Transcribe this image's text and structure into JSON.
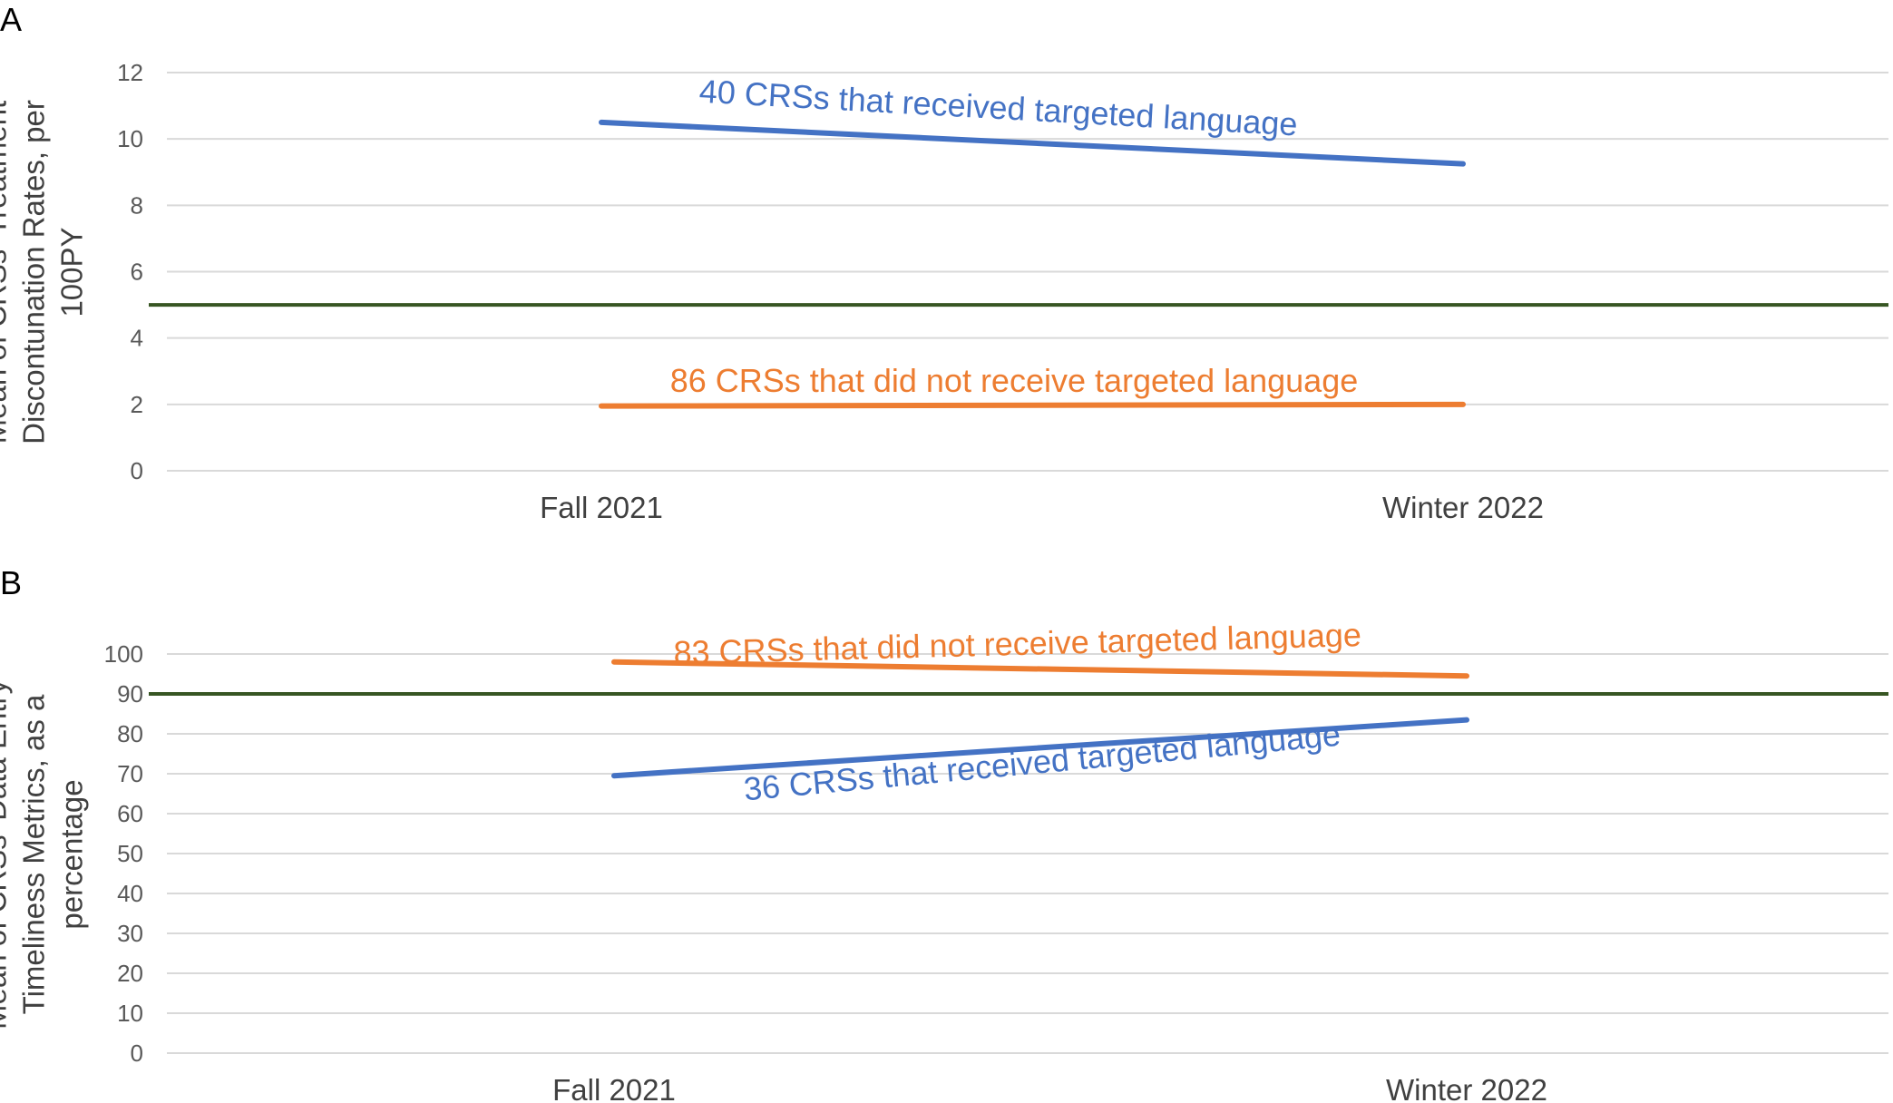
{
  "chart_data": [
    {
      "panel": "A",
      "type": "line",
      "ylabel": [
        "Mean of CRSs' Treatment",
        "Discontunation Rates, per",
        "100PY"
      ],
      "categories": [
        "Fall 2021",
        "Winter 2022"
      ],
      "ylim": [
        0,
        12
      ],
      "yticks": [
        0,
        2,
        4,
        6,
        8,
        10,
        12
      ],
      "grid": true,
      "reference_line": {
        "value": 5.0,
        "color": "#375623"
      },
      "series": [
        {
          "name": "40 CRSs that received targeted language",
          "values": [
            10.5,
            9.25
          ],
          "color": "#4472C4"
        },
        {
          "name": "86 CRSs that did not receive targeted language",
          "values": [
            1.95,
            2.0
          ],
          "color": "#ED7D31"
        }
      ]
    },
    {
      "panel": "B",
      "type": "line",
      "ylabel": [
        "Mean of CRSs' Data Entry",
        "Timeliness Metrics, as a",
        "percentage"
      ],
      "categories": [
        "Fall 2021",
        "Winter 2022"
      ],
      "ylim": [
        0,
        100
      ],
      "yticks": [
        0,
        10,
        20,
        30,
        40,
        50,
        60,
        70,
        80,
        90,
        100
      ],
      "grid": true,
      "reference_line": {
        "value": 90,
        "color": "#375623"
      },
      "series": [
        {
          "name": "83 CRSs that did not receive targeted language",
          "values": [
            98,
            94.5
          ],
          "color": "#ED7D31"
        },
        {
          "name": "36 CRSs that received targeted language",
          "values": [
            69.5,
            83.5
          ],
          "color": "#4472C4"
        }
      ]
    }
  ]
}
